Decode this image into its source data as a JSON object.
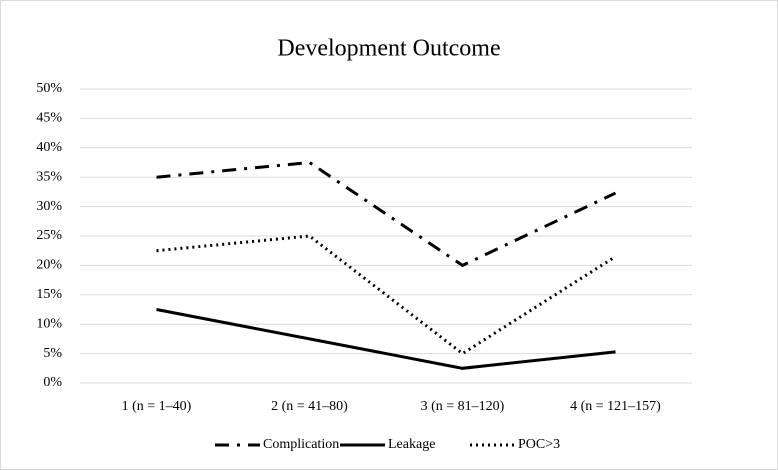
{
  "chart_data": {
    "type": "line",
    "title": "Development Outcome",
    "categories": [
      "1 (n = 1–40)",
      "2 (n = 41–80)",
      "3 (n = 81–120)",
      "4 (n = 121–157)"
    ],
    "series": [
      {
        "name": "Complication",
        "color": "#000000",
        "style": "dashdot",
        "values": [
          35,
          37.5,
          20,
          32.3
        ]
      },
      {
        "name": "Leakage",
        "color": "#000000",
        "style": "solid",
        "values": [
          12.5,
          7.5,
          2.5,
          5.3
        ]
      },
      {
        "name": "POC>3",
        "color": "#000000",
        "style": "dotted",
        "values": [
          22.5,
          25,
          5,
          21.5
        ]
      }
    ],
    "ylim": [
      0,
      50
    ],
    "yticks": [
      {
        "value": 0,
        "label": "0%"
      },
      {
        "value": 5,
        "label": "5%"
      },
      {
        "value": 10,
        "label": "10%"
      },
      {
        "value": 15,
        "label": "15%"
      },
      {
        "value": 20,
        "label": "20%"
      },
      {
        "value": 25,
        "label": "25%"
      },
      {
        "value": 30,
        "label": "30%"
      },
      {
        "value": 35,
        "label": "35%"
      },
      {
        "value": 40,
        "label": "40%"
      },
      {
        "value": 45,
        "label": "45%"
      },
      {
        "value": 50,
        "label": "50%"
      }
    ],
    "grid": true,
    "legend": "bottom"
  }
}
